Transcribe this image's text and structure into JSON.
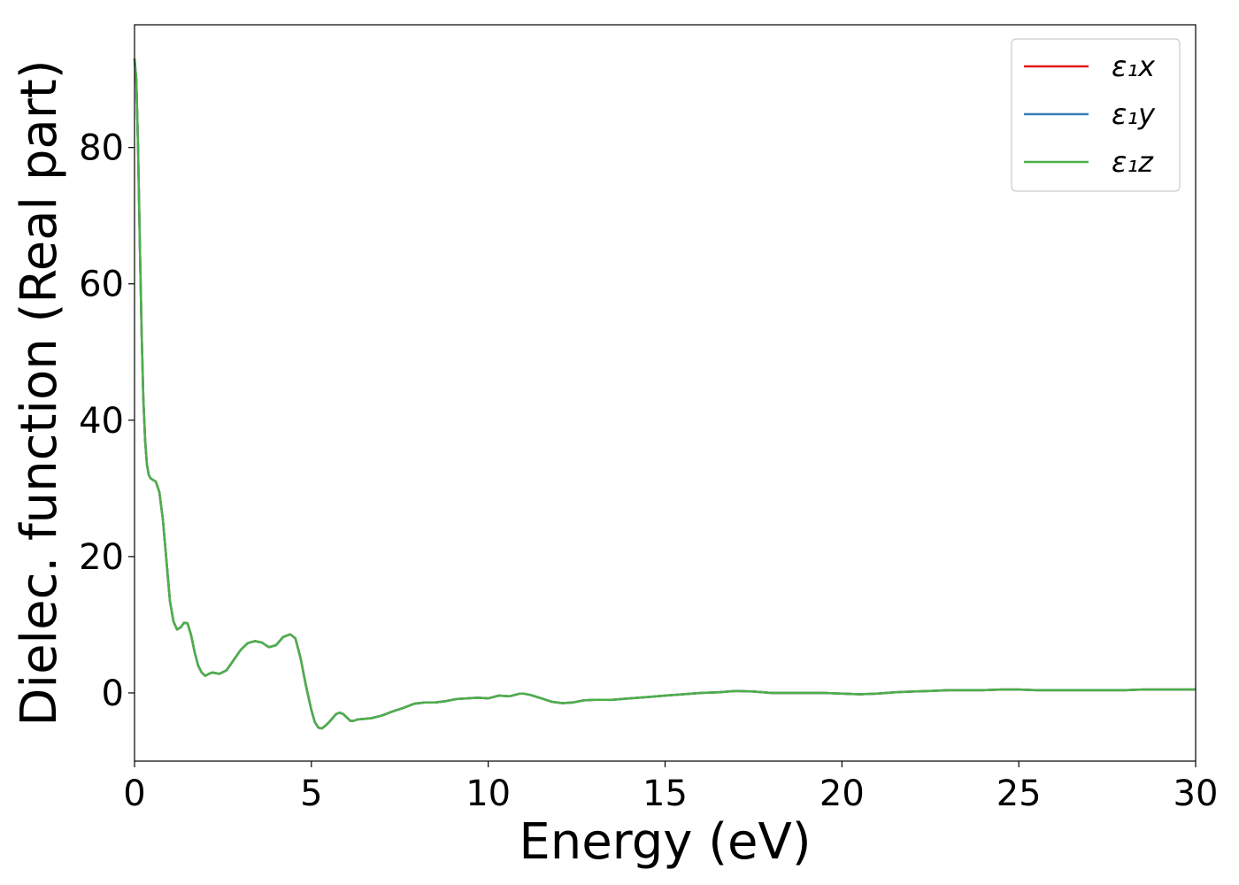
{
  "chart_data": {
    "type": "line",
    "xlabel": "Energy (eV)",
    "ylabel": "Dielec. function (Real part)",
    "xlim": [
      0,
      30
    ],
    "ylim": [
      -10,
      98
    ],
    "xticks": [
      0,
      5,
      10,
      15,
      20,
      25,
      30
    ],
    "yticks": [
      0,
      20,
      40,
      60,
      80
    ],
    "grid": false,
    "legend_position": "top-right",
    "x": [
      0.0,
      0.05,
      0.1,
      0.15,
      0.2,
      0.25,
      0.3,
      0.35,
      0.4,
      0.45,
      0.5,
      0.6,
      0.7,
      0.8,
      0.9,
      1.0,
      1.1,
      1.2,
      1.3,
      1.4,
      1.5,
      1.6,
      1.7,
      1.8,
      1.9,
      2.0,
      2.1,
      2.2,
      2.4,
      2.6,
      2.8,
      3.0,
      3.2,
      3.4,
      3.6,
      3.8,
      4.0,
      4.2,
      4.4,
      4.55,
      4.7,
      4.85,
      5.0,
      5.1,
      5.2,
      5.3,
      5.4,
      5.5,
      5.6,
      5.7,
      5.8,
      5.9,
      6.0,
      6.1,
      6.2,
      6.3,
      6.5,
      6.7,
      7.0,
      7.3,
      7.6,
      7.9,
      8.2,
      8.5,
      8.8,
      9.1,
      9.4,
      9.7,
      10.0,
      10.3,
      10.6,
      10.9,
      11.0,
      11.2,
      11.5,
      11.8,
      12.1,
      12.4,
      12.7,
      13.0,
      13.5,
      14.0,
      14.5,
      15.0,
      15.5,
      16.0,
      16.5,
      17.0,
      17.5,
      18.0,
      18.5,
      19.0,
      19.5,
      20.0,
      20.5,
      21.0,
      21.5,
      22.0,
      22.5,
      23.0,
      23.5,
      24.0,
      24.5,
      25.0,
      25.5,
      26.0,
      26.5,
      27.0,
      27.5,
      28.0,
      28.5,
      29.0,
      29.5,
      30.0
    ],
    "series": [
      {
        "name": "ε₁x",
        "color": "#e41a1c",
        "values": [
          93.0,
          90.0,
          80.0,
          66.0,
          53.0,
          43.0,
          37.0,
          33.5,
          32.0,
          31.5,
          31.3,
          31.0,
          29.5,
          25.5,
          19.5,
          13.5,
          10.5,
          9.3,
          9.6,
          10.3,
          10.2,
          8.5,
          6.0,
          4.0,
          3.0,
          2.5,
          2.8,
          3.0,
          2.8,
          3.3,
          4.8,
          6.3,
          7.3,
          7.6,
          7.4,
          6.7,
          7.0,
          8.2,
          8.6,
          8.0,
          5.0,
          1.0,
          -2.5,
          -4.3,
          -5.1,
          -5.2,
          -4.8,
          -4.3,
          -3.7,
          -3.1,
          -2.9,
          -3.1,
          -3.6,
          -4.1,
          -4.1,
          -3.9,
          -3.8,
          -3.7,
          -3.3,
          -2.7,
          -2.2,
          -1.6,
          -1.4,
          -1.4,
          -1.2,
          -0.9,
          -0.8,
          -0.7,
          -0.8,
          -0.4,
          -0.5,
          -0.1,
          -0.1,
          -0.3,
          -0.8,
          -1.3,
          -1.5,
          -1.4,
          -1.1,
          -1.0,
          -1.0,
          -0.8,
          -0.6,
          -0.4,
          -0.2,
          0.0,
          0.1,
          0.3,
          0.2,
          0.0,
          0.0,
          0.0,
          0.0,
          -0.1,
          -0.2,
          -0.1,
          0.1,
          0.2,
          0.3,
          0.4,
          0.4,
          0.4,
          0.5,
          0.5,
          0.4,
          0.4,
          0.4,
          0.4,
          0.4,
          0.4,
          0.5,
          0.5,
          0.5,
          0.5
        ]
      },
      {
        "name": "ε₁y",
        "color": "#377eb8",
        "values": [
          93.0,
          90.0,
          80.0,
          66.0,
          53.0,
          43.0,
          37.0,
          33.5,
          32.0,
          31.5,
          31.3,
          31.0,
          29.5,
          25.5,
          19.5,
          13.5,
          10.5,
          9.3,
          9.6,
          10.3,
          10.2,
          8.5,
          6.0,
          4.0,
          3.0,
          2.5,
          2.8,
          3.0,
          2.8,
          3.3,
          4.8,
          6.3,
          7.3,
          7.6,
          7.4,
          6.7,
          7.0,
          8.2,
          8.6,
          8.0,
          5.0,
          1.0,
          -2.5,
          -4.3,
          -5.1,
          -5.2,
          -4.8,
          -4.3,
          -3.7,
          -3.1,
          -2.9,
          -3.1,
          -3.6,
          -4.1,
          -4.1,
          -3.9,
          -3.8,
          -3.7,
          -3.3,
          -2.7,
          -2.2,
          -1.6,
          -1.4,
          -1.4,
          -1.2,
          -0.9,
          -0.8,
          -0.7,
          -0.8,
          -0.4,
          -0.5,
          -0.1,
          -0.1,
          -0.3,
          -0.8,
          -1.3,
          -1.5,
          -1.4,
          -1.1,
          -1.0,
          -1.0,
          -0.8,
          -0.6,
          -0.4,
          -0.2,
          0.0,
          0.1,
          0.3,
          0.2,
          0.0,
          0.0,
          0.0,
          0.0,
          -0.1,
          -0.2,
          -0.1,
          0.1,
          0.2,
          0.3,
          0.4,
          0.4,
          0.4,
          0.5,
          0.5,
          0.4,
          0.4,
          0.4,
          0.4,
          0.4,
          0.4,
          0.5,
          0.5,
          0.5,
          0.5
        ]
      },
      {
        "name": "ε₁z",
        "color": "#4daf4a",
        "values": [
          93.0,
          90.0,
          80.0,
          66.0,
          53.0,
          43.0,
          37.0,
          33.5,
          32.0,
          31.5,
          31.3,
          31.0,
          29.5,
          25.5,
          19.5,
          13.5,
          10.5,
          9.3,
          9.6,
          10.3,
          10.2,
          8.5,
          6.0,
          4.0,
          3.0,
          2.5,
          2.8,
          3.0,
          2.8,
          3.3,
          4.8,
          6.3,
          7.3,
          7.6,
          7.4,
          6.7,
          7.0,
          8.2,
          8.6,
          8.0,
          5.0,
          1.0,
          -2.5,
          -4.3,
          -5.1,
          -5.2,
          -4.8,
          -4.3,
          -3.7,
          -3.1,
          -2.9,
          -3.1,
          -3.6,
          -4.1,
          -4.1,
          -3.9,
          -3.8,
          -3.7,
          -3.3,
          -2.7,
          -2.2,
          -1.6,
          -1.4,
          -1.4,
          -1.2,
          -0.9,
          -0.8,
          -0.7,
          -0.8,
          -0.4,
          -0.5,
          -0.1,
          -0.1,
          -0.3,
          -0.8,
          -1.3,
          -1.5,
          -1.4,
          -1.1,
          -1.0,
          -1.0,
          -0.8,
          -0.6,
          -0.4,
          -0.2,
          0.0,
          0.1,
          0.3,
          0.2,
          0.0,
          0.0,
          0.0,
          0.0,
          -0.1,
          -0.2,
          -0.1,
          0.1,
          0.2,
          0.3,
          0.4,
          0.4,
          0.4,
          0.5,
          0.5,
          0.4,
          0.4,
          0.4,
          0.4,
          0.4,
          0.4,
          0.5,
          0.5,
          0.5,
          0.5
        ]
      }
    ]
  }
}
